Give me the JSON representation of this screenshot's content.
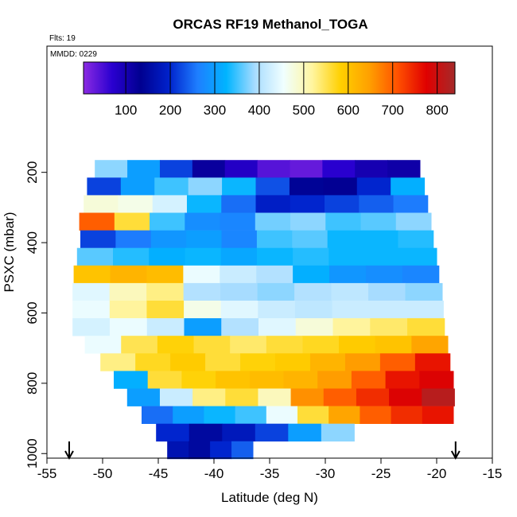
{
  "chart_data": {
    "type": "curtain",
    "title": "ORCAS RF19 Methanol_TOGA",
    "annotations": [
      "Flts: 19",
      "MMDD: 0229"
    ],
    "x_label": "Latitude (deg N)",
    "y_label": "PSXC (mbar)",
    "xlim": [
      -55,
      -15
    ],
    "xticks": [
      -55,
      -50,
      -45,
      -40,
      -35,
      -30,
      -25,
      -20,
      -15
    ],
    "ylim": [
      1013,
      -159
    ],
    "yticks": [
      200,
      400,
      600,
      800,
      1000
    ],
    "clim": [
      5,
      840
    ],
    "cticks": [
      100,
      200,
      300,
      400,
      500,
      600,
      700,
      800
    ],
    "colorscale": [
      "#8b2be2",
      "#2a00d0",
      "#000090",
      "#0022cc",
      "#1e7fff",
      "#00b4ff",
      "#a8dcff",
      "#f0ffff",
      "#fff5a0",
      "#ffd000",
      "#ffa000",
      "#ff5000",
      "#e00000",
      "#a52a2a"
    ],
    "arrows_x": [
      -53,
      -18.3
    ],
    "y_edges": [
      165,
      215,
      265,
      315,
      365,
      415,
      465,
      515,
      565,
      615,
      665,
      715,
      765,
      815,
      865,
      915,
      965,
      1015
    ],
    "rows": [
      {
        "lat": [
          -50.7,
          -21.5
        ],
        "values": [
          380,
          300,
          220,
          120,
          80,
          40,
          30,
          70,
          100,
          110
        ]
      },
      {
        "lat": [
          -51.4,
          -21.1
        ],
        "values": [
          220,
          300,
          350,
          380,
          330,
          230,
          140,
          130,
          200,
          320
        ]
      },
      {
        "lat": [
          -51.7,
          -20.8
        ],
        "values": [
          480,
          470,
          430,
          330,
          250,
          190,
          200,
          220,
          240,
          260
        ]
      },
      {
        "lat": [
          -52.1,
          -20.5
        ],
        "values": [
          700,
          560,
          350,
          280,
          270,
          370,
          380,
          350,
          360,
          380
        ]
      },
      {
        "lat": [
          -52.0,
          -20.3
        ],
        "values": [
          220,
          260,
          290,
          300,
          270,
          350,
          360,
          330,
          330,
          340
        ]
      },
      {
        "lat": [
          -52.3,
          -20.0
        ],
        "values": [
          360,
          340,
          320,
          330,
          310,
          330,
          340,
          330,
          330,
          330
        ]
      },
      {
        "lat": [
          -52.6,
          -19.8
        ],
        "values": [
          600,
          620,
          610,
          450,
          420,
          400,
          320,
          290,
          280,
          270
        ]
      },
      {
        "lat": [
          -52.7,
          -19.5
        ],
        "values": [
          440,
          500,
          530,
          400,
          390,
          380,
          400,
          410,
          390,
          380
        ]
      },
      {
        "lat": [
          -52.7,
          -19.4
        ],
        "values": [
          450,
          520,
          560,
          470,
          440,
          420,
          410,
          420,
          420,
          420
        ]
      },
      {
        "lat": [
          -52.7,
          -19.3
        ],
        "values": [
          430,
          450,
          420,
          300,
          400,
          440,
          480,
          520,
          540,
          560
        ]
      },
      {
        "lat": [
          -51.6,
          -19.0
        ],
        "values": [
          450,
          550,
          580,
          560,
          540,
          560,
          570,
          590,
          600,
          640
        ]
      },
      {
        "lat": [
          -50.2,
          -18.8
        ],
        "values": [
          530,
          570,
          590,
          560,
          580,
          590,
          620,
          650,
          700,
          760
        ]
      },
      {
        "lat": [
          -49.0,
          -18.5
        ],
        "values": [
          320,
          560,
          580,
          600,
          610,
          620,
          650,
          700,
          760,
          780
        ]
      },
      {
        "lat": [
          -47.8,
          -18.4
        ],
        "values": [
          300,
          420,
          530,
          560,
          500,
          660,
          700,
          740,
          780,
          820
        ]
      },
      {
        "lat": [
          -46.5,
          -18.5
        ],
        "values": [
          250,
          300,
          330,
          350,
          450,
          560,
          640,
          700,
          740,
          760
        ]
      },
      {
        "lat": [
          -45.2,
          -27.4
        ],
        "values": [
          200,
          150,
          180,
          220,
          300,
          380
        ]
      },
      {
        "lat": [
          -44.2,
          -36.5
        ],
        "values": [
          170,
          150,
          200,
          240
        ]
      }
    ]
  }
}
